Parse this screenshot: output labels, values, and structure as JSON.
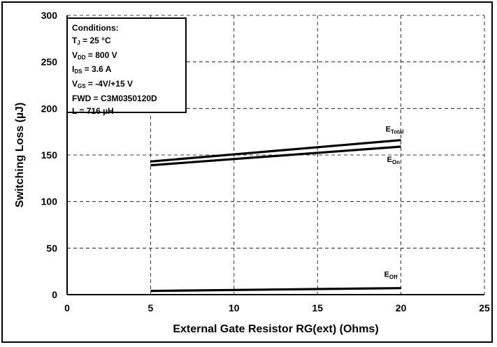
{
  "chart_data": {
    "type": "line",
    "xlabel": "External Gate Resistor RG(ext) (Ohms)",
    "ylabel": "Switching Loss (µJ)",
    "xlim": [
      0,
      25
    ],
    "ylim": [
      0,
      300
    ],
    "xticks": [
      0,
      5,
      10,
      15,
      20,
      25
    ],
    "yticks": [
      0,
      50,
      100,
      150,
      200,
      250,
      300
    ],
    "grid": true,
    "series": [
      {
        "name_main": "E",
        "name_sub": "Total",
        "x": [
          5,
          20
        ],
        "y": [
          143,
          166
        ]
      },
      {
        "name_main": "E",
        "name_sub": "On",
        "x": [
          5,
          20
        ],
        "y": [
          139,
          159
        ]
      },
      {
        "name_main": "E",
        "name_sub": "Off",
        "x": [
          5,
          20
        ],
        "y": [
          4,
          7
        ]
      }
    ],
    "conditions": [
      {
        "pre": "Conditions:",
        "sub": "",
        "post": ""
      },
      {
        "pre": "T",
        "sub": "J",
        "post": " = 25 °C"
      },
      {
        "pre": "V",
        "sub": "DD",
        "post": " = 800 V"
      },
      {
        "pre": "I",
        "sub": "DS",
        "post": " = 3.6 A"
      },
      {
        "pre": "V",
        "sub": "GS",
        "post": " = -4V/+15 V"
      },
      {
        "pre": "FWD = C3M0350120D",
        "sub": "",
        "post": ""
      },
      {
        "pre": "L = 716 µH",
        "sub": "",
        "post": ""
      }
    ]
  }
}
